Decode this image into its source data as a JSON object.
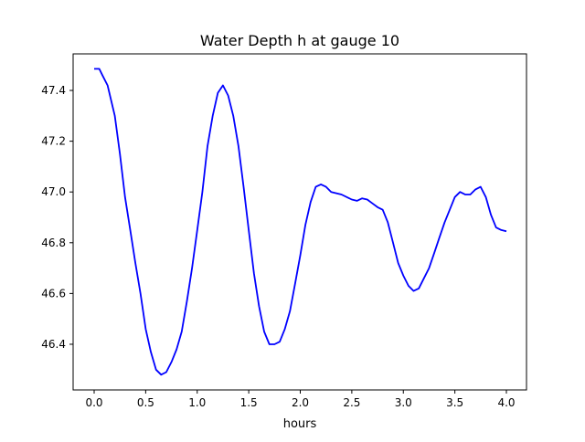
{
  "chart_data": {
    "type": "line",
    "title": "Water Depth h at gauge 10",
    "xlabel": "hours",
    "ylabel": "",
    "xlim": [
      -0.204,
      4.195
    ],
    "ylim": [
      46.22,
      47.544
    ],
    "xticks": [
      0.0,
      0.5,
      1.0,
      1.5,
      2.0,
      2.5,
      3.0,
      3.5,
      4.0
    ],
    "xtick_labels": [
      "0.0",
      "0.5",
      "1.0",
      "1.5",
      "2.0",
      "2.5",
      "3.0",
      "3.5",
      "4.0"
    ],
    "yticks": [
      46.4,
      46.6,
      46.8,
      47.0,
      47.2,
      47.4
    ],
    "ytick_labels": [
      "46.4",
      "46.6",
      "46.8",
      "47.0",
      "47.2",
      "47.4"
    ],
    "grid": false,
    "series": [
      {
        "name": "h",
        "color": "#0000ff",
        "x": [
          0.0,
          0.05,
          0.08,
          0.13,
          0.2,
          0.25,
          0.3,
          0.35,
          0.4,
          0.45,
          0.5,
          0.55,
          0.6,
          0.65,
          0.7,
          0.75,
          0.8,
          0.85,
          0.9,
          0.95,
          1.0,
          1.05,
          1.1,
          1.15,
          1.2,
          1.25,
          1.3,
          1.35,
          1.4,
          1.45,
          1.5,
          1.55,
          1.6,
          1.65,
          1.7,
          1.75,
          1.8,
          1.85,
          1.9,
          1.95,
          2.0,
          2.05,
          2.1,
          2.15,
          2.2,
          2.25,
          2.3,
          2.4,
          2.5,
          2.55,
          2.6,
          2.65,
          2.7,
          2.75,
          2.8,
          2.85,
          2.9,
          2.95,
          3.0,
          3.05,
          3.1,
          3.15,
          3.2,
          3.25,
          3.3,
          3.35,
          3.4,
          3.45,
          3.5,
          3.55,
          3.6,
          3.65,
          3.7,
          3.75,
          3.8,
          3.85,
          3.9,
          3.95,
          4.0
        ],
        "y": [
          47.485,
          47.485,
          47.46,
          47.42,
          47.3,
          47.15,
          46.98,
          46.85,
          46.72,
          46.6,
          46.46,
          46.37,
          46.3,
          46.28,
          46.29,
          46.33,
          46.38,
          46.45,
          46.57,
          46.7,
          46.85,
          47.0,
          47.18,
          47.3,
          47.39,
          47.42,
          47.38,
          47.3,
          47.18,
          47.02,
          46.85,
          46.68,
          46.55,
          46.45,
          46.4,
          46.4,
          46.41,
          46.46,
          46.53,
          46.64,
          46.75,
          46.87,
          46.96,
          47.02,
          47.03,
          47.02,
          47.0,
          46.99,
          46.97,
          46.965,
          46.975,
          46.97,
          46.955,
          46.94,
          46.93,
          46.88,
          46.8,
          46.72,
          46.67,
          46.63,
          46.61,
          46.62,
          46.66,
          46.7,
          46.76,
          46.82,
          46.88,
          46.93,
          46.98,
          47.0,
          46.99,
          46.99,
          47.01,
          47.02,
          46.98,
          46.91,
          46.86,
          46.85,
          46.845
        ]
      }
    ]
  }
}
